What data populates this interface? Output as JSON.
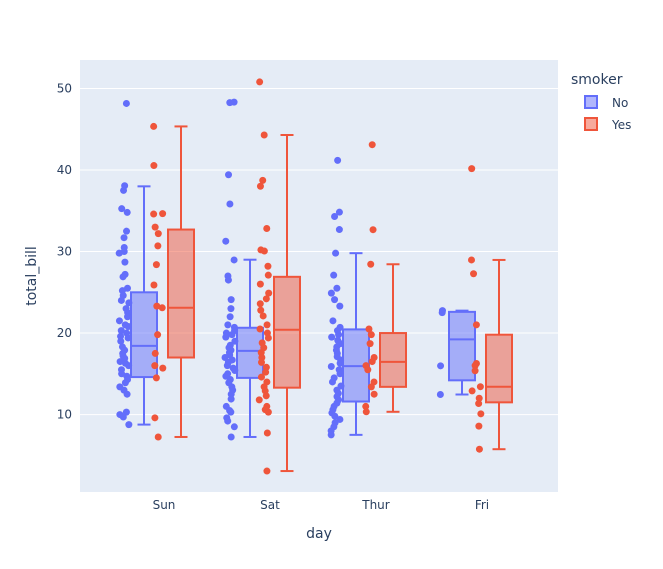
{
  "chart_data": {
    "type": "box",
    "xlabel": "day",
    "ylabel": "total_bill",
    "categories": [
      "Sun",
      "Sat",
      "Thur",
      "Fri"
    ],
    "ylim": [
      0.5,
      53.5
    ],
    "yticks": [
      10,
      20,
      30,
      40,
      50
    ],
    "grid": true,
    "legend": {
      "title": "smoker",
      "position": "top-right"
    },
    "series": [
      {
        "name": "No",
        "color": "#636efa",
        "boxes": [
          {
            "category": "Sun",
            "min": 8.77,
            "q1": 14.6,
            "median": 18.43,
            "q3": 25.0,
            "max": 38.0,
            "points": [
              48.17,
              38.07,
              37.5,
              35.26,
              34.8,
              32.5,
              31.7,
              30.5,
              30.0,
              29.8,
              28.7,
              27.2,
              26.9,
              25.5,
              25.2,
              24.6,
              24.0,
              23.7,
              23.0,
              22.5,
              22.0,
              21.5,
              21.0,
              20.8,
              20.3,
              20.0,
              19.6,
              19.4,
              19.0,
              18.3,
              17.9,
              17.5,
              17.2,
              16.9,
              16.5,
              16.3,
              16.0,
              15.5,
              15.0,
              14.7,
              14.3,
              13.9,
              13.4,
              13.0,
              12.5,
              10.3,
              10.0,
              9.7,
              8.77
            ]
          },
          {
            "category": "Sat",
            "min": 7.25,
            "q1": 14.5,
            "median": 17.82,
            "q3": 20.65,
            "max": 29.0,
            "points": [
              48.33,
              48.27,
              39.42,
              35.83,
              31.27,
              28.97,
              27.0,
              26.5,
              24.1,
              23.0,
              22.0,
              21.0,
              20.7,
              20.3,
              20.0,
              19.8,
              19.5,
              19.0,
              18.5,
              18.2,
              17.9,
              17.6,
              17.3,
              17.0,
              16.7,
              16.4,
              16.0,
              15.7,
              15.4,
              15.0,
              14.7,
              14.3,
              13.9,
              13.4,
              13.0,
              12.5,
              11.9,
              11.0,
              10.5,
              10.3,
              9.6,
              9.2,
              8.5,
              7.25
            ]
          },
          {
            "category": "Thur",
            "min": 7.51,
            "q1": 11.6,
            "median": 15.95,
            "q3": 20.45,
            "max": 29.8,
            "points": [
              41.19,
              34.83,
              34.3,
              32.7,
              29.8,
              27.1,
              25.5,
              24.9,
              24.1,
              23.3,
              21.5,
              20.7,
              20.3,
              19.8,
              19.5,
              19.1,
              18.7,
              18.3,
              17.9,
              17.5,
              17.1,
              16.7,
              16.3,
              15.9,
              15.5,
              15.0,
              14.5,
              14.0,
              13.5,
              13.0,
              12.6,
              12.2,
              11.8,
              11.4,
              11.0,
              10.6,
              10.2,
              9.8,
              9.4,
              9.0,
              8.5,
              8.0,
              7.51
            ]
          },
          {
            "category": "Fri",
            "min": 12.46,
            "q1": 14.2,
            "median": 19.23,
            "q3": 22.6,
            "max": 22.75,
            "points": [
              22.75,
              22.5,
              15.98,
              12.46
            ]
          }
        ]
      },
      {
        "name": "Yes",
        "color": "#ef553b",
        "boxes": [
          {
            "category": "Sun",
            "min": 7.25,
            "q1": 17.0,
            "median": 23.1,
            "q3": 32.7,
            "max": 45.35,
            "points": [
              45.35,
              40.55,
              34.65,
              34.6,
              33.0,
              32.2,
              30.7,
              28.4,
              25.9,
              23.3,
              23.1,
              19.8,
              17.5,
              16.0,
              15.7,
              14.5,
              9.6,
              7.25
            ]
          },
          {
            "category": "Sat",
            "min": 3.07,
            "q1": 13.3,
            "median": 20.4,
            "q3": 26.9,
            "max": 44.3,
            "points": [
              50.81,
              44.3,
              38.73,
              38.01,
              32.83,
              30.2,
              30.06,
              28.2,
              27.1,
              26.0,
              24.9,
              24.2,
              23.6,
              22.8,
              22.1,
              21.0,
              20.5,
              20.0,
              19.4,
              18.8,
              18.2,
              17.6,
              17.0,
              16.4,
              15.8,
              15.2,
              14.6,
              14.0,
              13.4,
              12.9,
              12.3,
              11.8,
              11.0,
              10.6,
              10.3,
              7.74,
              3.07
            ]
          },
          {
            "category": "Thur",
            "min": 10.34,
            "q1": 13.4,
            "median": 16.47,
            "q3": 20.0,
            "max": 28.44,
            "points": [
              43.11,
              32.68,
              28.44,
              20.5,
              19.8,
              18.7,
              17.0,
              16.5,
              16.0,
              15.5,
              14.0,
              13.4,
              12.5,
              11.0,
              10.34
            ]
          },
          {
            "category": "Fri",
            "min": 5.75,
            "q1": 11.5,
            "median": 13.42,
            "q3": 19.8,
            "max": 28.97,
            "points": [
              40.17,
              28.97,
              27.28,
              21.01,
              16.27,
              16.0,
              15.38,
              13.42,
              12.9,
              12.0,
              11.35,
              10.09,
              8.58,
              5.75
            ]
          }
        ]
      }
    ]
  }
}
